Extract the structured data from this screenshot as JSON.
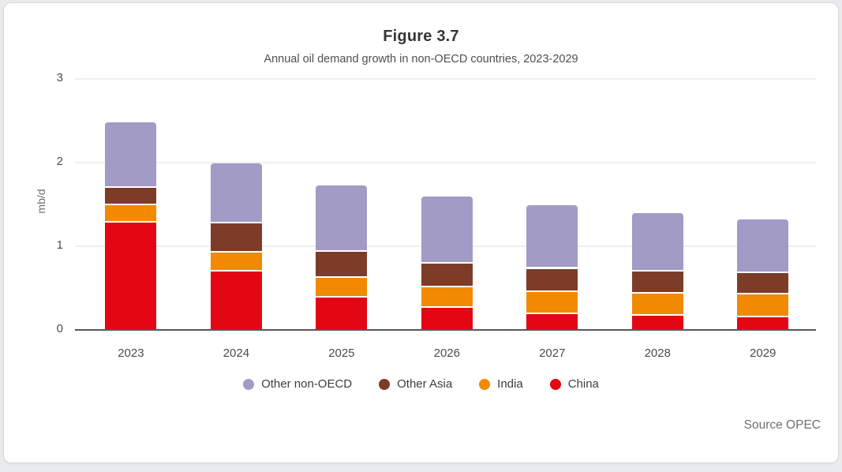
{
  "chart_data": {
    "type": "bar",
    "stacked": true,
    "title": "Figure 3.7",
    "subtitle": "Annual oil demand growth in non-OECD countries, 2023-2029",
    "source": "Source OPEC",
    "ylabel": "mb/d",
    "ylim": [
      0,
      3
    ],
    "yticks": [
      0,
      1,
      2,
      3
    ],
    "grid": "horizontal",
    "legend_position": "bottom",
    "legend_order": [
      "Other non-OECD",
      "Other Asia",
      "India",
      "China"
    ],
    "categories": [
      "2023",
      "2024",
      "2025",
      "2026",
      "2027",
      "2028",
      "2029"
    ],
    "series": [
      {
        "name": "China",
        "color": "#e30613",
        "values": [
          1.3,
          0.72,
          0.41,
          0.28,
          0.21,
          0.19,
          0.17
        ]
      },
      {
        "name": "India",
        "color": "#f18a00",
        "values": [
          0.21,
          0.22,
          0.23,
          0.25,
          0.26,
          0.26,
          0.27
        ]
      },
      {
        "name": "Other Asia",
        "color": "#7c3c28",
        "values": [
          0.21,
          0.35,
          0.31,
          0.28,
          0.28,
          0.27,
          0.26
        ]
      },
      {
        "name": "Other non-OECD",
        "color": "#a19bc5",
        "values": [
          0.76,
          0.7,
          0.78,
          0.78,
          0.74,
          0.68,
          0.62
        ]
      }
    ],
    "totals": [
      2.48,
      1.99,
      1.73,
      1.59,
      1.49,
      1.4,
      1.32
    ]
  }
}
